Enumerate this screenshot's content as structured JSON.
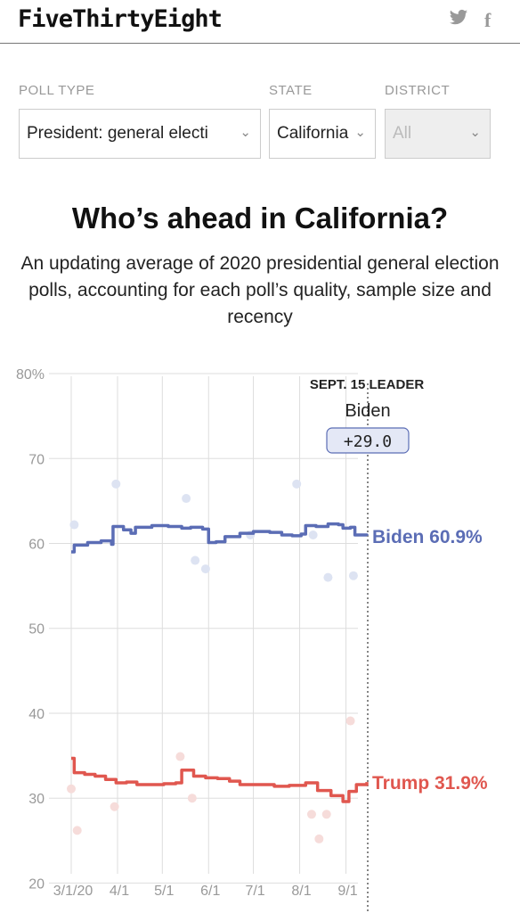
{
  "header": {
    "logo": "FiveThirtyEight",
    "twitter_icon": "twitter-icon",
    "facebook_icon": "facebook-icon",
    "facebook_glyph": "f"
  },
  "filters": {
    "poll_type": {
      "label": "POLL TYPE",
      "value": "President: general electi"
    },
    "state": {
      "label": "STATE",
      "value": "California"
    },
    "district": {
      "label": "DISTRICT",
      "value": "All"
    }
  },
  "headline": {
    "title": "Who’s ahead in California?",
    "subtitle": "An updating average of 2020 presidential general election polls, accounting for each poll’s quality, sample size and recency"
  },
  "chart_data": {
    "type": "line",
    "x_tick_labels": [
      "3/1/20",
      "4/1",
      "5/1",
      "6/1",
      "7/1",
      "8/1",
      "9/1"
    ],
    "x_range": [
      "2020-03-01",
      "2020-09-15"
    ],
    "y_tick_labels": [
      "80%",
      "70",
      "60",
      "50",
      "40",
      "30",
      "20"
    ],
    "y_ticks": [
      80,
      70,
      60,
      50,
      40,
      30,
      20
    ],
    "ylim": [
      17,
      82
    ],
    "grid": true,
    "leader": {
      "heading": "SEPT. 15 LEADER",
      "name": "Biden",
      "margin": "+29.0",
      "date": "2020-09-15"
    },
    "series": [
      {
        "name": "Biden",
        "end_label": "Biden 60.9%",
        "color": "#5b6db5",
        "dot_color": "#dde3f2",
        "points": [
          [
            "2020-03-01",
            59.0
          ],
          [
            "2020-03-03",
            59.8
          ],
          [
            "2020-03-12",
            60.1
          ],
          [
            "2020-03-21",
            60.3
          ],
          [
            "2020-03-28",
            59.9
          ],
          [
            "2020-03-29",
            62.0
          ],
          [
            "2020-04-05",
            61.6
          ],
          [
            "2020-04-10",
            61.2
          ],
          [
            "2020-04-13",
            61.9
          ],
          [
            "2020-04-24",
            62.1
          ],
          [
            "2020-05-05",
            62.0
          ],
          [
            "2020-05-14",
            61.8
          ],
          [
            "2020-05-20",
            61.9
          ],
          [
            "2020-05-28",
            61.7
          ],
          [
            "2020-06-01",
            60.1
          ],
          [
            "2020-06-06",
            60.2
          ],
          [
            "2020-06-12",
            60.8
          ],
          [
            "2020-06-22",
            61.2
          ],
          [
            "2020-07-01",
            61.4
          ],
          [
            "2020-07-12",
            61.3
          ],
          [
            "2020-07-20",
            61.0
          ],
          [
            "2020-07-27",
            60.9
          ],
          [
            "2020-08-02",
            61.1
          ],
          [
            "2020-08-05",
            62.1
          ],
          [
            "2020-08-12",
            62.0
          ],
          [
            "2020-08-20",
            62.3
          ],
          [
            "2020-08-27",
            62.2
          ],
          [
            "2020-08-30",
            61.8
          ],
          [
            "2020-09-04",
            61.9
          ],
          [
            "2020-09-07",
            61.0
          ],
          [
            "2020-09-15",
            60.9
          ]
        ],
        "polls": [
          [
            "2020-03-03",
            62.2
          ],
          [
            "2020-03-31",
            67.0
          ],
          [
            "2020-05-17",
            65.3
          ],
          [
            "2020-05-23",
            58.0
          ],
          [
            "2020-05-30",
            57.0
          ],
          [
            "2020-06-29",
            61.0
          ],
          [
            "2020-07-30",
            67.0
          ],
          [
            "2020-08-10",
            61.0
          ],
          [
            "2020-08-20",
            56.0
          ],
          [
            "2020-09-06",
            56.2
          ]
        ]
      },
      {
        "name": "Trump",
        "end_label": "Trump 31.9%",
        "color": "#e0574f",
        "dot_color": "#f6dcda",
        "points": [
          [
            "2020-03-01",
            34.7
          ],
          [
            "2020-03-03",
            33.0
          ],
          [
            "2020-03-10",
            32.8
          ],
          [
            "2020-03-17",
            32.6
          ],
          [
            "2020-03-24",
            32.2
          ],
          [
            "2020-03-31",
            31.8
          ],
          [
            "2020-04-07",
            31.9
          ],
          [
            "2020-04-14",
            31.6
          ],
          [
            "2020-04-23",
            31.6
          ],
          [
            "2020-05-02",
            31.7
          ],
          [
            "2020-05-10",
            31.8
          ],
          [
            "2020-05-14",
            33.3
          ],
          [
            "2020-05-22",
            32.6
          ],
          [
            "2020-05-30",
            32.4
          ],
          [
            "2020-06-07",
            32.3
          ],
          [
            "2020-06-15",
            32.0
          ],
          [
            "2020-06-22",
            31.6
          ],
          [
            "2020-07-01",
            31.6
          ],
          [
            "2020-07-15",
            31.4
          ],
          [
            "2020-07-25",
            31.5
          ],
          [
            "2020-08-05",
            31.8
          ],
          [
            "2020-08-13",
            30.9
          ],
          [
            "2020-08-22",
            30.3
          ],
          [
            "2020-08-30",
            29.6
          ],
          [
            "2020-09-03",
            30.8
          ],
          [
            "2020-09-08",
            31.6
          ],
          [
            "2020-09-15",
            31.9
          ]
        ],
        "polls": [
          [
            "2020-03-01",
            31.1
          ],
          [
            "2020-03-05",
            26.2
          ],
          [
            "2020-03-30",
            29.0
          ],
          [
            "2020-05-13",
            34.9
          ],
          [
            "2020-05-21",
            30.0
          ],
          [
            "2020-08-09",
            28.1
          ],
          [
            "2020-08-14",
            25.2
          ],
          [
            "2020-08-19",
            28.1
          ],
          [
            "2020-09-04",
            39.1
          ]
        ]
      }
    ]
  }
}
